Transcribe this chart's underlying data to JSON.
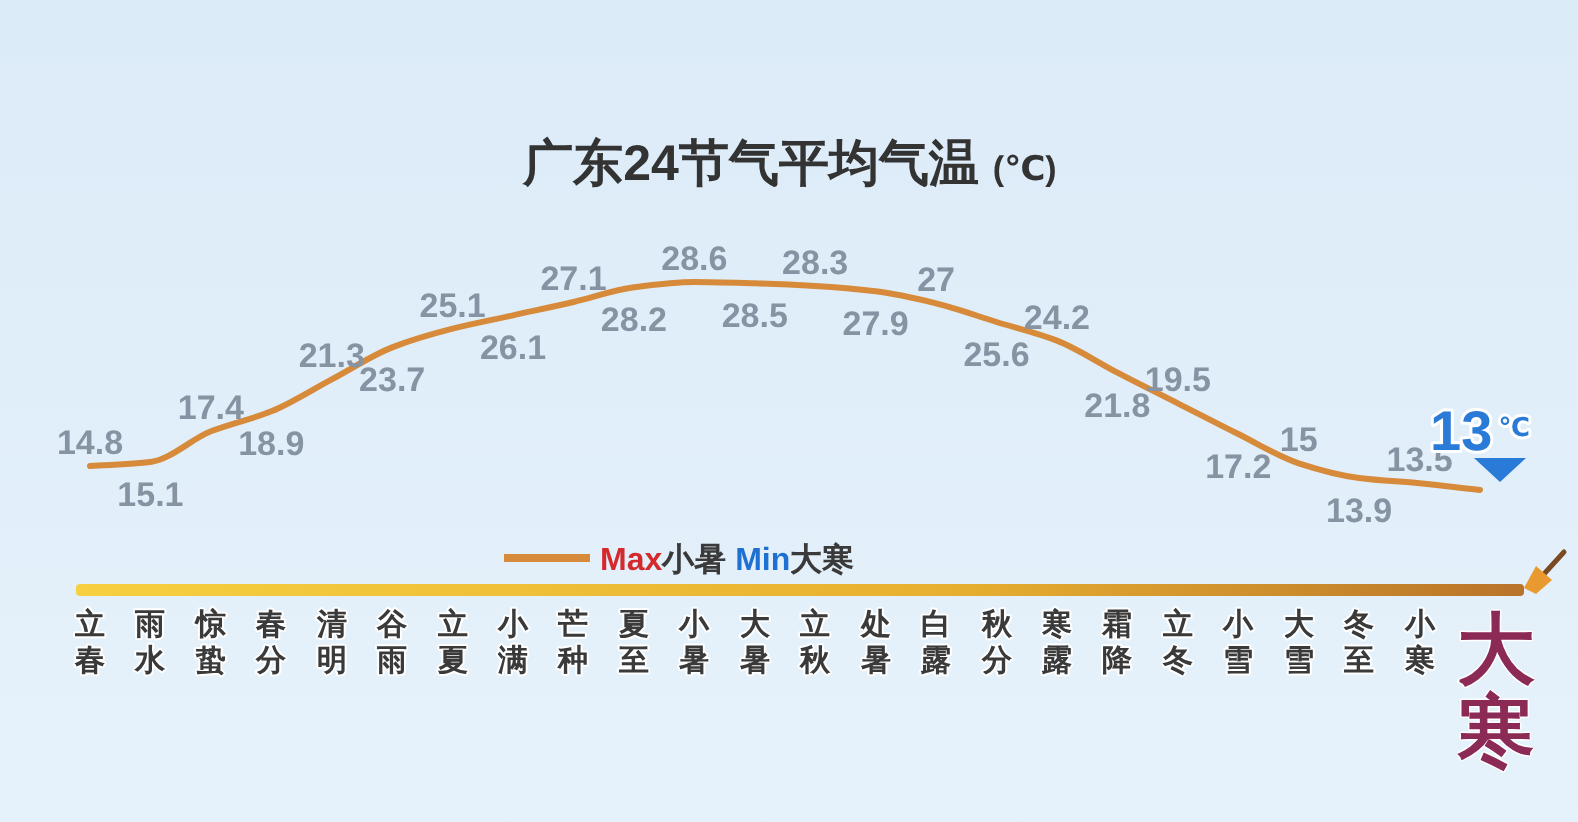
{
  "chart_data": {
    "type": "line",
    "title": "广东24节气平均气温 (℃)",
    "categories": [
      "立春",
      "雨水",
      "惊蛰",
      "春分",
      "清明",
      "谷雨",
      "立夏",
      "小满",
      "芒种",
      "夏至",
      "小暑",
      "大暑",
      "立秋",
      "处暑",
      "白露",
      "秋分",
      "寒露",
      "霜降",
      "立冬",
      "小雪",
      "大雪",
      "冬至",
      "小寒",
      "大寒"
    ],
    "series": [
      {
        "name": "Max小暑 Min大寒",
        "color": "#d68a3a",
        "values": [
          14.8,
          15.1,
          17.4,
          18.9,
          21.3,
          23.7,
          25.1,
          26.1,
          27.1,
          28.2,
          28.6,
          28.5,
          28.3,
          27.9,
          27,
          25.6,
          24.2,
          21.8,
          19.5,
          17.2,
          15,
          13.9,
          13.5,
          13
        ],
        "value_labels": [
          "14.8",
          "15.1",
          "17.4",
          "18.9",
          "21.3",
          "23.7",
          "25.1",
          "26.1",
          "27.1",
          "28.2",
          "28.6",
          "28.5",
          "28.3",
          "27.9",
          "27",
          "25.6",
          "24.2",
          "21.8",
          "19.5",
          "17.2",
          "15",
          "13.9",
          "13.5",
          "13$^{℃}$"
        ]
      }
    ],
    "legend": "bottom"
  }
}
